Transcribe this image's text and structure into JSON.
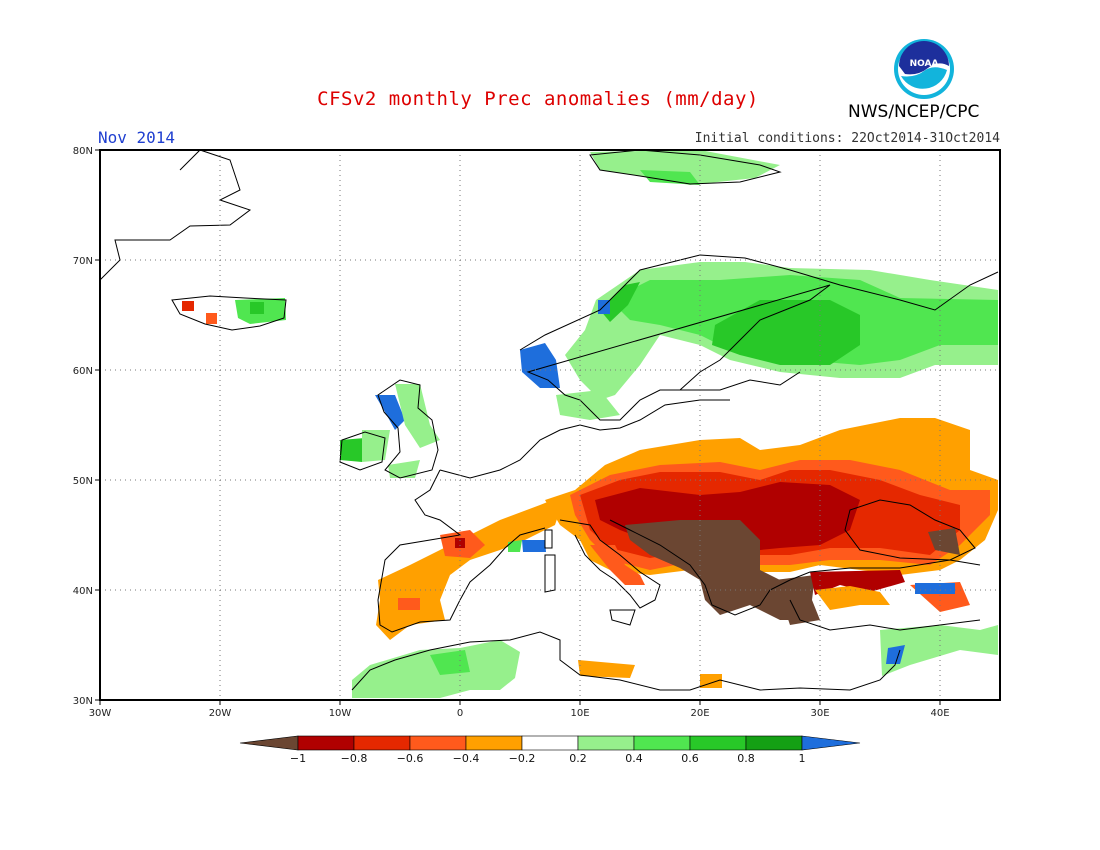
{
  "header": {
    "title": "CFSv2 monthly Prec anomalies (mm/day)",
    "month": "Nov 2014",
    "initial_conditions": "Initial conditions: 22Oct2014-31Oct2014",
    "agency": "NWS/NCEP/CPC",
    "logo_text": "NOAA"
  },
  "map": {
    "lon_range": [
      -30,
      45
    ],
    "lat_range": [
      30,
      80
    ],
    "lat_ticks": [
      "30N",
      "40N",
      "50N",
      "60N",
      "70N",
      "80N"
    ],
    "lon_ticks": [
      "30W",
      "20W",
      "10W",
      "0",
      "10E",
      "20E",
      "30E",
      "40E"
    ],
    "gridlines": "dotted"
  },
  "colorbar": {
    "ticks": [
      "-1",
      "-0.8",
      "-0.6",
      "-0.4",
      "-0.2",
      "0.2",
      "0.4",
      "0.6",
      "0.8",
      "1"
    ],
    "colors": [
      "#6b4632",
      "#b00000",
      "#e52800",
      "#ff5a1c",
      "#ffa000",
      "#ffffff",
      "#96f08c",
      "#50e650",
      "#28c828",
      "#14a014",
      "#1e6edc"
    ]
  },
  "anomaly_regions": [
    {
      "label": "Balkans / Adriatic",
      "class": "< -1",
      "color": "#6b4632"
    },
    {
      "label": "Central/Eastern Europe",
      "class": "-1 to -0.6",
      "color": "#b00000"
    },
    {
      "label": "Ukraine / Russia south",
      "class": "-0.6 to -0.2",
      "color": "#ffa000"
    },
    {
      "label": "Iberia",
      "class": "-0.6 to -0.2",
      "color": "#ffa000"
    },
    {
      "label": "Scandinavia / NW Russia",
      "class": "0.2 to 0.8",
      "color": "#50e650"
    },
    {
      "label": "Western Norway",
      "class": "> 1",
      "color": "#1e6edc"
    },
    {
      "label": "North Africa",
      "class": "0.2 to 0.4",
      "color": "#96f08c"
    }
  ]
}
